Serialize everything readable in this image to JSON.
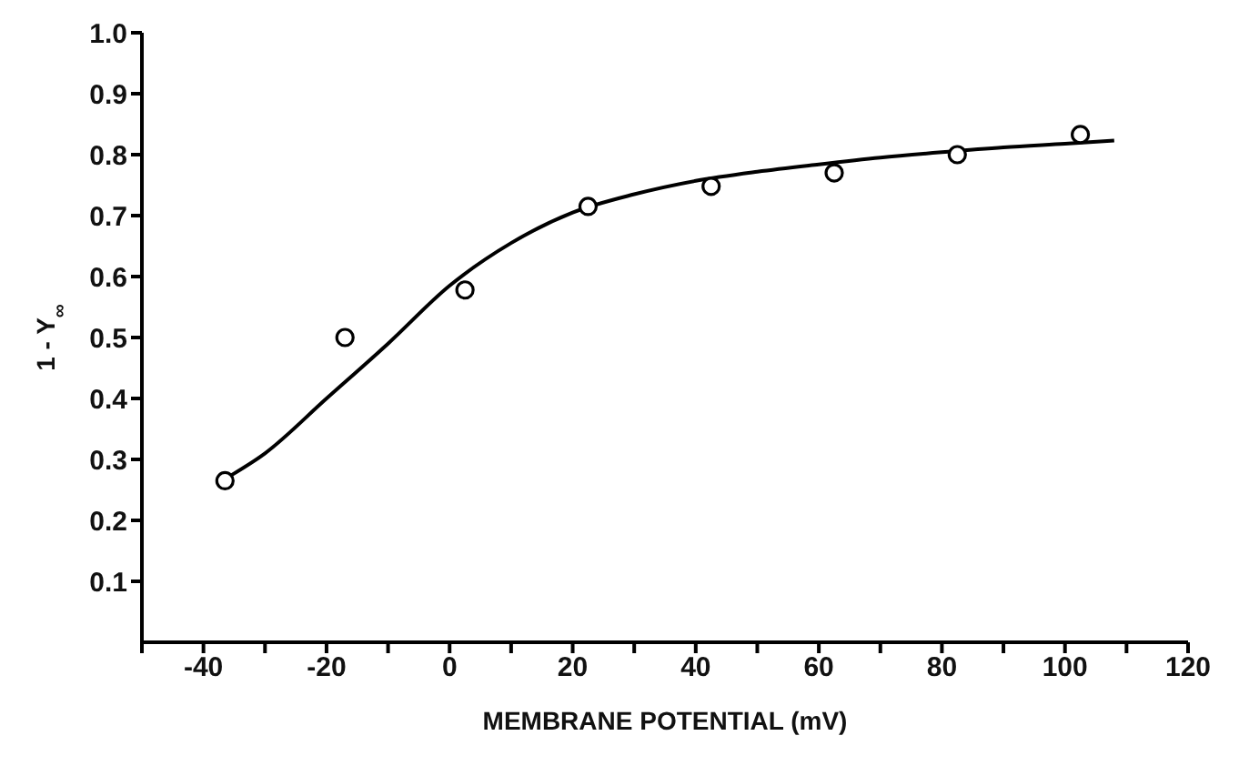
{
  "chart_data": {
    "type": "scatter",
    "xlabel": "MEMBRANE POTENTIAL (mV)",
    "ylabel": "1 - Y$_{∞}$",
    "xlim": [
      -50,
      120
    ],
    "xticks": [
      {
        "value": -50,
        "label": null
      },
      -40,
      {
        "value": -30,
        "label": null
      },
      -20,
      {
        "value": -10,
        "label": null
      },
      0,
      {
        "value": 10,
        "label": null
      },
      20,
      {
        "value": 30,
        "label": null
      },
      40,
      {
        "value": 50,
        "label": null
      },
      60,
      {
        "value": 70,
        "label": null
      },
      80,
      {
        "value": 90,
        "label": null
      },
      100,
      {
        "value": 110,
        "label": null
      },
      120
    ],
    "ylim": [
      0,
      1.0
    ],
    "yticks": [
      0.1,
      0.2,
      0.3,
      0.4,
      0.5,
      0.6,
      0.7,
      0.8,
      0.9,
      {
        "value": 1.0,
        "label": "1.0"
      }
    ],
    "grid": false,
    "legend": false,
    "series": [
      {
        "color": "#000000",
        "marker": "circle",
        "x": [
          -36.5,
          -17,
          2.5,
          22.5,
          42.5,
          62.5,
          82.5,
          102.5
        ],
        "values": [
          0.265,
          0.5,
          0.578,
          0.715,
          0.748,
          0.77,
          0.8,
          0.833
        ]
      },
      {
        "type": "line",
        "color": "#000000",
        "marker": "none",
        "line_style": "solid",
        "x": [
          -37,
          -30,
          -20,
          -10,
          0,
          10,
          20,
          30,
          40,
          50,
          60,
          70,
          80,
          90,
          100,
          108
        ],
        "values": [
          0.265,
          0.31,
          0.4,
          0.49,
          0.585,
          0.655,
          0.705,
          0.735,
          0.757,
          0.772,
          0.784,
          0.795,
          0.804,
          0.812,
          0.818,
          0.823
        ]
      }
    ]
  }
}
